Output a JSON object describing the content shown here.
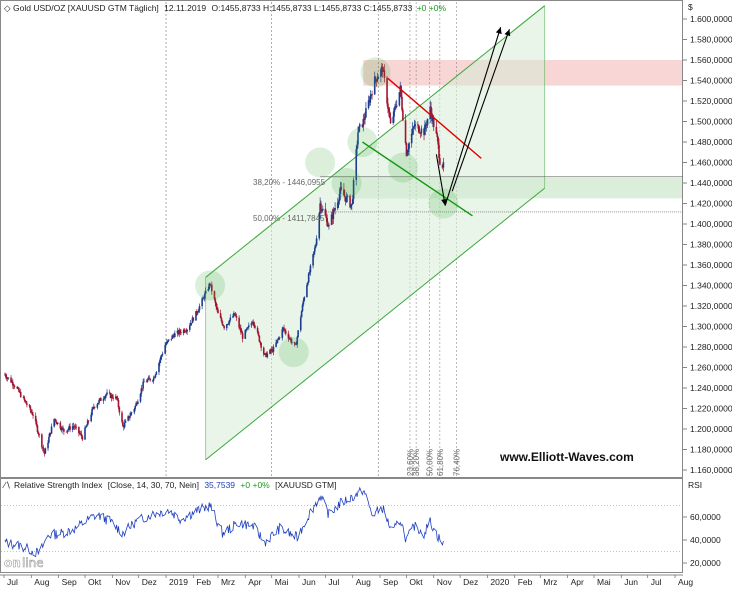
{
  "chart_data": [
    {
      "type": "candlestick",
      "title": "Gold USD/OZ [XAUUSD GTM Täglich] 12.11.2019",
      "header": {
        "instrument": "Gold USD/OZ [XAUUSD GTM  Täglich]",
        "date": "12.11.2019",
        "ohlc": "O:1455,8733 H:1455,8733 L:1455,8733 C:1455,8733",
        "change": "+0 +0%"
      },
      "y_axis_unit": "$",
      "ylim": [
        1160,
        1610
      ],
      "y_ticks": [
        "1.600,0000",
        "1.580,0000",
        "1.560,0000",
        "1.540,0000",
        "1.520,0000",
        "1.500,0000",
        "1.480,0000",
        "1.460,0000",
        "1.440,0000",
        "1.420,0000",
        "1.400,0000",
        "1.380,0000",
        "1.360,0000",
        "1.340,0000",
        "1.320,0000",
        "1.300,0000",
        "1.280,0000",
        "1.260,0000",
        "1.240,0000",
        "1.220,0000",
        "1.200,0000",
        "1.180,0000",
        "1.160,0000"
      ],
      "x_labels": [
        "Jul",
        "Aug",
        "Sep",
        "Okt",
        "Nov",
        "Dez",
        "2019",
        "Feb",
        "Mrz",
        "Apr",
        "Mai",
        "Jun",
        "Jul",
        "Aug",
        "Sep",
        "Okt",
        "Nov",
        "Dez",
        "2020",
        "Feb",
        "Mrz",
        "Apr",
        "Mai",
        "Jun",
        "Jul",
        "Aug"
      ],
      "close_path": [
        [
          "2018-07-02",
          1253
        ],
        [
          "2018-07-12",
          1244
        ],
        [
          "2018-07-24",
          1228
        ],
        [
          "2018-08-03",
          1214
        ],
        [
          "2018-08-16",
          1176
        ],
        [
          "2018-08-27",
          1210
        ],
        [
          "2018-09-07",
          1198
        ],
        [
          "2018-09-18",
          1203
        ],
        [
          "2018-09-28",
          1192
        ],
        [
          "2018-10-11",
          1222
        ],
        [
          "2018-10-25",
          1234
        ],
        [
          "2018-11-06",
          1230
        ],
        [
          "2018-11-13",
          1202
        ],
        [
          "2018-11-27",
          1222
        ],
        [
          "2018-12-07",
          1246
        ],
        [
          "2018-12-18",
          1250
        ],
        [
          "2018-12-31",
          1282
        ],
        [
          "2019-01-10",
          1292
        ],
        [
          "2019-01-25",
          1298
        ],
        [
          "2019-02-05",
          1314
        ],
        [
          "2019-02-20",
          1342
        ],
        [
          "2019-03-01",
          1312
        ],
        [
          "2019-03-08",
          1300
        ],
        [
          "2019-03-20",
          1312
        ],
        [
          "2019-03-29",
          1290
        ],
        [
          "2019-04-10",
          1306
        ],
        [
          "2019-04-23",
          1271
        ],
        [
          "2019-05-03",
          1278
        ],
        [
          "2019-05-14",
          1298
        ],
        [
          "2019-05-28",
          1280
        ],
        [
          "2019-06-07",
          1330
        ],
        [
          "2019-06-20",
          1380
        ],
        [
          "2019-06-25",
          1420
        ],
        [
          "2019-07-05",
          1398
        ],
        [
          "2019-07-18",
          1432
        ],
        [
          "2019-07-31",
          1418
        ],
        [
          "2019-08-07",
          1490
        ],
        [
          "2019-08-13",
          1500
        ],
        [
          "2019-08-26",
          1540
        ],
        [
          "2019-09-04",
          1552
        ],
        [
          "2019-09-13",
          1496
        ],
        [
          "2019-09-24",
          1532
        ],
        [
          "2019-10-01",
          1470
        ],
        [
          "2019-10-10",
          1496
        ],
        [
          "2019-10-21",
          1490
        ],
        [
          "2019-10-28",
          1512
        ],
        [
          "2019-11-05",
          1482
        ],
        [
          "2019-11-08",
          1462
        ],
        [
          "2019-11-12",
          1456
        ]
      ],
      "fib_labels": [
        "23,60%",
        "38,20%",
        "50,00%",
        "61,80%",
        "76,40%"
      ],
      "annotations": {
        "retracement_382": "38,20% - 1446,0955",
        "retracement_50": "50,00% - 1411,7845",
        "website": "www.Elliott-Waves.com"
      },
      "colors": {
        "channel": "#3aa83a",
        "channel_fill": "#d6ecd6",
        "resistance_zone": "#f6c8c8",
        "red_trendline": "#e00000",
        "green_trendline": "#119911",
        "arrows": "#000000",
        "rsi_line": "#1f3fbf"
      }
    },
    {
      "type": "line",
      "title": "Relative Strength Index",
      "header": {
        "name": "Relative Strength Index",
        "params": "[Close, 14, 30, 70, Nein]",
        "value": "35,7539",
        "change": "+0 +0%",
        "instrument": "[XAUUSD GTM]"
      },
      "y_axis_unit": "RSI",
      "ylim": [
        15,
        90
      ],
      "y_ticks": [
        "60,0000",
        "40,0000",
        "20,0000"
      ],
      "levels": [
        30,
        70
      ],
      "rsi_path": [
        [
          "2018-07-02",
          38
        ],
        [
          "2018-07-20",
          35
        ],
        [
          "2018-08-10",
          28
        ],
        [
          "2018-08-20",
          44
        ],
        [
          "2018-09-05",
          46
        ],
        [
          "2018-09-20",
          50
        ],
        [
          "2018-10-05",
          58
        ],
        [
          "2018-10-15",
          62
        ],
        [
          "2018-10-30",
          56
        ],
        [
          "2018-11-13",
          46
        ],
        [
          "2018-11-28",
          56
        ],
        [
          "2018-12-14",
          62
        ],
        [
          "2019-01-04",
          66
        ],
        [
          "2019-01-18",
          58
        ],
        [
          "2019-02-01",
          64
        ],
        [
          "2019-02-20",
          70
        ],
        [
          "2019-03-06",
          46
        ],
        [
          "2019-03-25",
          55
        ],
        [
          "2019-04-10",
          52
        ],
        [
          "2019-04-23",
          38
        ],
        [
          "2019-05-10",
          50
        ],
        [
          "2019-05-30",
          42
        ],
        [
          "2019-06-12",
          62
        ],
        [
          "2019-06-25",
          78
        ],
        [
          "2019-07-05",
          62
        ],
        [
          "2019-07-18",
          72
        ],
        [
          "2019-08-07",
          80
        ],
        [
          "2019-08-13",
          84
        ],
        [
          "2019-08-23",
          62
        ],
        [
          "2019-09-04",
          68
        ],
        [
          "2019-09-15",
          46
        ],
        [
          "2019-09-24",
          58
        ],
        [
          "2019-10-01",
          40
        ],
        [
          "2019-10-10",
          52
        ],
        [
          "2019-10-21",
          46
        ],
        [
          "2019-10-28",
          56
        ],
        [
          "2019-11-05",
          44
        ],
        [
          "2019-11-12",
          36
        ]
      ],
      "x_labels": [
        "Jul",
        "Aug",
        "Sep",
        "Okt",
        "Nov",
        "Dez",
        "2019",
        "Feb",
        "Mrz",
        "Apr",
        "Mai",
        "Jun",
        "Jul",
        "Aug",
        "Sep",
        "Okt",
        "Nov",
        "Dez",
        "2020",
        "Feb",
        "Mrz",
        "Apr",
        "Mai",
        "Jun",
        "Jul",
        "Aug"
      ]
    }
  ],
  "brand_logo": "onvista"
}
